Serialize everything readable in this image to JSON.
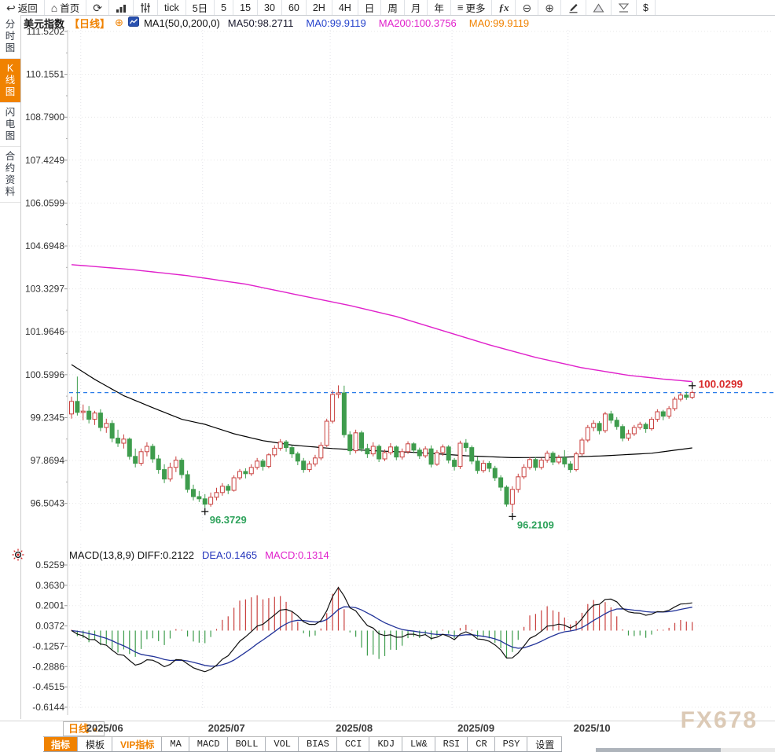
{
  "colors": {
    "up": "#c9413f",
    "down": "#3e9c4d",
    "ma50": "#000000",
    "ma200": "#e021cb",
    "price_line": "#2b7de9",
    "price_label": "#d92b2b",
    "low_label": "#2fa35c",
    "diff_line": "#111111",
    "dea_line": "#223399",
    "accent_orange": "#f08200"
  },
  "top_toolbar": {
    "items": [
      {
        "name": "back",
        "label": "返回",
        "icon": "back-arrow"
      },
      {
        "name": "home",
        "label": "首页",
        "icon": "home"
      },
      {
        "name": "refresh",
        "icon": "refresh"
      },
      {
        "name": "chart-style",
        "icon": "bar-chart"
      },
      {
        "name": "indicator-panel",
        "icon": "sliders"
      },
      {
        "name": "period-tick",
        "label": "tick"
      },
      {
        "name": "period-5d",
        "label": "5日"
      },
      {
        "name": "period-5m",
        "label": "5"
      },
      {
        "name": "period-15m",
        "label": "15"
      },
      {
        "name": "period-30m",
        "label": "30"
      },
      {
        "name": "period-60m",
        "label": "60"
      },
      {
        "name": "period-2h",
        "label": "2H"
      },
      {
        "name": "period-4h",
        "label": "4H"
      },
      {
        "name": "period-day",
        "label": "日"
      },
      {
        "name": "period-week",
        "label": "周"
      },
      {
        "name": "period-month",
        "label": "月"
      },
      {
        "name": "period-year",
        "label": "年"
      },
      {
        "name": "more",
        "label": "更多",
        "icon": "menu"
      },
      {
        "name": "fx-functions",
        "icon": "fx"
      },
      {
        "name": "zoom-out",
        "icon": "zoom-out"
      },
      {
        "name": "zoom-in",
        "icon": "zoom-in"
      },
      {
        "name": "draw",
        "icon": "pencil"
      },
      {
        "name": "mark-up",
        "icon": "triangle-up"
      },
      {
        "name": "mark-down",
        "icon": "triangle-down"
      },
      {
        "name": "currency",
        "label": "$"
      }
    ]
  },
  "title_bar": {
    "symbol": "美元指数",
    "period_tag": "【日线】",
    "add_icon": "⊕",
    "ma_settings": "MA1(50,0,200,0)",
    "ma_values": [
      {
        "text": "MA50:98.2711",
        "color": "#1a1a2e"
      },
      {
        "text": "MA0:99.9119",
        "color": "#2643cc"
      },
      {
        "text": "MA200:100.3756",
        "color": "#e021cb"
      },
      {
        "text": "MA0:99.9119",
        "color": "#f08200"
      }
    ]
  },
  "sidebar": {
    "items": [
      {
        "name": "time-share-chart",
        "label": "分时图",
        "active": false
      },
      {
        "name": "kline-chart",
        "label": "K线图",
        "active": true
      },
      {
        "name": "lightning-chart",
        "label": "闪电图",
        "active": false
      },
      {
        "name": "contract-info",
        "label": "合约资料",
        "active": false
      }
    ]
  },
  "chart_data": {
    "type": "candlestick",
    "symbol": "美元指数",
    "period": "日线",
    "y_axis_labels": [
      "111.5202",
      "110.1551",
      "108.7900",
      "107.4249",
      "106.0599",
      "104.6948",
      "103.3297",
      "101.9646",
      "100.5996",
      "99.2345",
      "97.8694",
      "96.5043"
    ],
    "x_axis_labels": [
      "2025/06",
      "2025/07",
      "2025/08",
      "2025/09",
      "2025/10"
    ],
    "month_start_indices": [
      2,
      23,
      45,
      66,
      86
    ],
    "current_price": 100.0299,
    "current_price_label": "100.0299",
    "current_marker_index": 107,
    "low_markers": [
      {
        "index": 23,
        "label": "96.3729",
        "value": 96.3729
      },
      {
        "index": 76,
        "label": "96.2109",
        "value": 96.2109
      }
    ],
    "ma50_points": [
      [
        0,
        100.92
      ],
      [
        4,
        100.45
      ],
      [
        9,
        99.93
      ],
      [
        14,
        99.55
      ],
      [
        19,
        99.18
      ],
      [
        23,
        99.02
      ],
      [
        28,
        98.72
      ],
      [
        33,
        98.5
      ],
      [
        38,
        98.36
      ],
      [
        45,
        98.25
      ],
      [
        52,
        98.18
      ],
      [
        60,
        98.12
      ],
      [
        68,
        98.02
      ],
      [
        76,
        97.96
      ],
      [
        84,
        97.97
      ],
      [
        92,
        98.02
      ],
      [
        100,
        98.1
      ],
      [
        107,
        98.27
      ]
    ],
    "ma200_points": [
      [
        0,
        104.1
      ],
      [
        10,
        103.95
      ],
      [
        20,
        103.75
      ],
      [
        30,
        103.48
      ],
      [
        40,
        103.1
      ],
      [
        48,
        102.8
      ],
      [
        56,
        102.45
      ],
      [
        64,
        102.0
      ],
      [
        72,
        101.55
      ],
      [
        80,
        101.15
      ],
      [
        88,
        100.82
      ],
      [
        96,
        100.58
      ],
      [
        102,
        100.46
      ],
      [
        107,
        100.38
      ]
    ],
    "candles": [
      [
        99.35,
        99.9,
        99.2,
        99.75
      ],
      [
        99.75,
        100.54,
        99.3,
        99.4
      ],
      [
        99.4,
        99.65,
        99.15,
        99.44
      ],
      [
        99.44,
        99.6,
        99.05,
        99.18
      ],
      [
        99.18,
        99.45,
        99.0,
        99.38
      ],
      [
        99.38,
        99.5,
        98.8,
        98.92
      ],
      [
        98.92,
        99.2,
        98.75,
        99.05
      ],
      [
        99.05,
        99.15,
        98.45,
        98.58
      ],
      [
        98.58,
        98.85,
        98.3,
        98.42
      ],
      [
        98.42,
        98.7,
        98.25,
        98.55
      ],
      [
        98.55,
        98.6,
        97.9,
        98.0
      ],
      [
        98.0,
        98.25,
        97.65,
        97.78
      ],
      [
        97.78,
        98.25,
        97.7,
        98.15
      ],
      [
        98.15,
        98.45,
        98.0,
        98.32
      ],
      [
        98.32,
        98.4,
        97.8,
        97.92
      ],
      [
        97.92,
        98.05,
        97.45,
        97.58
      ],
      [
        97.58,
        97.75,
        97.15,
        97.28
      ],
      [
        97.28,
        97.8,
        97.2,
        97.65
      ],
      [
        97.65,
        98.0,
        97.5,
        97.88
      ],
      [
        97.88,
        97.95,
        97.3,
        97.42
      ],
      [
        97.42,
        97.55,
        96.85,
        96.95
      ],
      [
        96.95,
        97.1,
        96.6,
        96.72
      ],
      [
        96.72,
        96.9,
        96.55,
        96.65
      ],
      [
        96.65,
        96.8,
        96.3729,
        96.48
      ],
      [
        96.48,
        96.85,
        96.4,
        96.7
      ],
      [
        96.7,
        97.0,
        96.6,
        96.85
      ],
      [
        96.85,
        97.15,
        96.75,
        97.05
      ],
      [
        97.05,
        97.12,
        96.8,
        96.92
      ],
      [
        96.92,
        97.4,
        96.88,
        97.32
      ],
      [
        97.32,
        97.6,
        97.25,
        97.52
      ],
      [
        97.52,
        97.62,
        97.3,
        97.45
      ],
      [
        97.45,
        97.75,
        97.38,
        97.65
      ],
      [
        97.65,
        97.95,
        97.58,
        97.85
      ],
      [
        97.85,
        97.92,
        97.55,
        97.68
      ],
      [
        97.68,
        98.1,
        97.62,
        98.05
      ],
      [
        98.05,
        98.35,
        97.98,
        98.26
      ],
      [
        98.26,
        98.55,
        98.18,
        98.46
      ],
      [
        98.46,
        98.52,
        98.15,
        98.28
      ],
      [
        98.28,
        98.35,
        97.95,
        98.08
      ],
      [
        98.08,
        98.15,
        97.72,
        97.85
      ],
      [
        97.85,
        97.95,
        97.48,
        97.58
      ],
      [
        97.58,
        97.85,
        97.5,
        97.76
      ],
      [
        97.76,
        98.05,
        97.68,
        97.95
      ],
      [
        97.95,
        98.45,
        97.88,
        98.35
      ],
      [
        98.35,
        99.2,
        98.3,
        99.12
      ],
      [
        99.12,
        100.1,
        99.05,
        99.97
      ],
      [
        99.97,
        100.26,
        99.85,
        100.02
      ],
      [
        100.02,
        100.25,
        98.6,
        98.69
      ],
      [
        98.69,
        98.8,
        98.05,
        98.18
      ],
      [
        98.18,
        98.85,
        98.1,
        98.75
      ],
      [
        98.75,
        98.82,
        98.15,
        98.25
      ],
      [
        98.25,
        98.4,
        97.95,
        98.08
      ],
      [
        98.08,
        98.45,
        98.0,
        98.32
      ],
      [
        98.32,
        98.38,
        97.82,
        97.92
      ],
      [
        97.92,
        98.22,
        97.85,
        98.12
      ],
      [
        98.12,
        98.42,
        98.05,
        98.3
      ],
      [
        98.3,
        98.35,
        97.88,
        97.98
      ],
      [
        97.98,
        98.25,
        97.9,
        98.15
      ],
      [
        98.15,
        98.48,
        98.08,
        98.4
      ],
      [
        98.4,
        98.45,
        98.1,
        98.2
      ],
      [
        98.2,
        98.28,
        97.92,
        98.02
      ],
      [
        98.02,
        98.32,
        97.95,
        98.24
      ],
      [
        98.24,
        98.35,
        97.65,
        97.75
      ],
      [
        97.75,
        98.2,
        97.7,
        98.12
      ],
      [
        98.12,
        98.38,
        98.02,
        98.3
      ],
      [
        98.3,
        98.36,
        97.78,
        97.88
      ],
      [
        97.88,
        97.95,
        97.55,
        97.68
      ],
      [
        97.68,
        98.5,
        97.6,
        98.42
      ],
      [
        98.42,
        98.55,
        98.15,
        98.28
      ],
      [
        98.28,
        98.35,
        97.75,
        97.85
      ],
      [
        97.85,
        97.98,
        97.45,
        97.55
      ],
      [
        97.55,
        97.88,
        97.48,
        97.78
      ],
      [
        97.78,
        97.85,
        97.5,
        97.62
      ],
      [
        97.62,
        97.7,
        97.22,
        97.32
      ],
      [
        97.32,
        97.4,
        96.9,
        97.02
      ],
      [
        97.02,
        97.08,
        96.4,
        96.48
      ],
      [
        96.48,
        97.05,
        96.2109,
        96.95
      ],
      [
        96.95,
        97.45,
        96.85,
        97.35
      ],
      [
        97.35,
        97.75,
        97.28,
        97.65
      ],
      [
        97.65,
        97.98,
        97.58,
        97.9
      ],
      [
        97.9,
        97.98,
        97.55,
        97.65
      ],
      [
        97.65,
        97.95,
        97.58,
        97.88
      ],
      [
        97.88,
        98.18,
        97.8,
        98.1
      ],
      [
        98.1,
        98.16,
        97.72,
        97.82
      ],
      [
        97.82,
        98.05,
        97.75,
        97.96
      ],
      [
        97.96,
        98.2,
        97.65,
        97.76
      ],
      [
        97.76,
        97.85,
        97.48,
        97.58
      ],
      [
        97.58,
        98.15,
        97.52,
        98.08
      ],
      [
        98.08,
        98.6,
        98.02,
        98.52
      ],
      [
        98.52,
        99.0,
        98.45,
        98.92
      ],
      [
        98.92,
        99.15,
        98.8,
        99.05
      ],
      [
        99.05,
        99.12,
        98.7,
        98.82
      ],
      [
        98.82,
        99.42,
        98.75,
        99.35
      ],
      [
        99.35,
        99.45,
        99.05,
        99.15
      ],
      [
        99.15,
        99.25,
        98.85,
        98.95
      ],
      [
        98.95,
        99.02,
        98.48,
        98.58
      ],
      [
        98.58,
        98.85,
        98.5,
        98.72
      ],
      [
        98.72,
        99.0,
        98.65,
        98.92
      ],
      [
        98.92,
        99.1,
        98.85,
        99.02
      ],
      [
        99.02,
        99.08,
        98.75,
        98.88
      ],
      [
        98.88,
        99.25,
        98.82,
        99.18
      ],
      [
        99.18,
        99.5,
        99.1,
        99.42
      ],
      [
        99.42,
        99.48,
        99.15,
        99.28
      ],
      [
        99.28,
        99.6,
        99.2,
        99.52
      ],
      [
        99.52,
        99.9,
        99.45,
        99.82
      ],
      [
        99.82,
        100.02,
        99.75,
        99.95
      ],
      [
        99.95,
        100.06,
        99.8,
        99.88
      ],
      [
        99.88,
        100.1,
        99.82,
        100.0299
      ]
    ],
    "macd": {
      "header_parts": [
        {
          "text": "MACD(13,8,9) DIFF:0.2122",
          "color": "#111111"
        },
        {
          "text": "DEA:0.1465",
          "color": "#2233bb"
        },
        {
          "text": "MACD:0.1314",
          "color": "#e021cb"
        }
      ],
      "diff": 0.2122,
      "dea": 0.1465,
      "macd": 0.1314,
      "y_axis_labels": [
        "0.5259",
        "0.3630",
        "0.2001",
        "0.0372",
        "-0.1257",
        "-0.2886",
        "-0.4515",
        "-0.6144"
      ]
    }
  },
  "bottom": {
    "period_selector": {
      "label": "日线",
      "arrow": "▲"
    },
    "watermark": "FX678",
    "tabs": [
      {
        "name": "indicators",
        "label": "指标",
        "style": "active",
        "cjk": true
      },
      {
        "name": "templates",
        "label": "模板",
        "style": "",
        "cjk": true
      },
      {
        "name": "vip-indicators",
        "label": "VIP指标",
        "style": "vip",
        "cjk": true
      },
      {
        "name": "ma",
        "label": "MA",
        "style": "",
        "cjk": false
      },
      {
        "name": "macd",
        "label": "MACD",
        "style": "",
        "cjk": false
      },
      {
        "name": "boll",
        "label": "BOLL",
        "style": "",
        "cjk": false
      },
      {
        "name": "vol",
        "label": "VOL",
        "style": "",
        "cjk": false
      },
      {
        "name": "bias",
        "label": "BIAS",
        "style": "",
        "cjk": false
      },
      {
        "name": "cci",
        "label": "CCI",
        "style": "",
        "cjk": false
      },
      {
        "name": "kdj",
        "label": "KDJ",
        "style": "",
        "cjk": false
      },
      {
        "name": "lw",
        "label": "LW&",
        "style": "",
        "cjk": false
      },
      {
        "name": "rsi",
        "label": "RSI",
        "style": "",
        "cjk": false
      },
      {
        "name": "cr",
        "label": "CR",
        "style": "",
        "cjk": false
      },
      {
        "name": "psy",
        "label": "PSY",
        "style": "",
        "cjk": false
      },
      {
        "name": "settings",
        "label": "设置",
        "style": "",
        "cjk": true
      }
    ]
  }
}
